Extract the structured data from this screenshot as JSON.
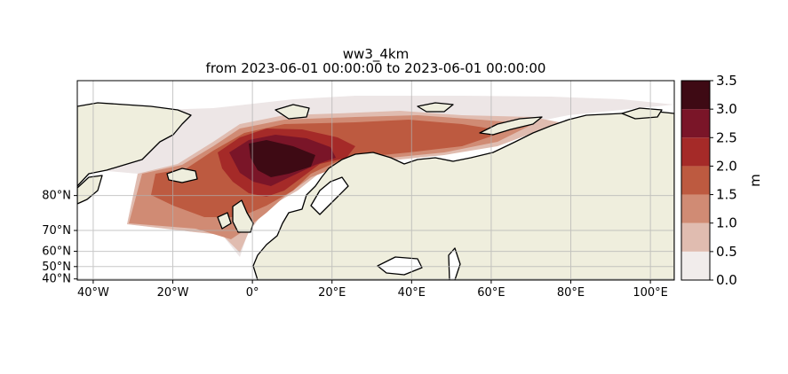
{
  "title": "ww3_4km",
  "subtitle": "from 2023-06-01 00:00:00 to 2023-06-01 00:00:00",
  "map": {
    "lon_range": [
      -44,
      106
    ],
    "lat_range": [
      39,
      89
    ],
    "lon_ticks": [
      "40°W",
      "20°W",
      "0°",
      "20°E",
      "40°E",
      "60°E",
      "80°E",
      "100°E"
    ],
    "lon_tick_values": [
      -40,
      -20,
      0,
      20,
      40,
      60,
      80,
      100
    ],
    "lat_ticks": [
      "80°N",
      "70°N",
      "60°N",
      "50°N",
      "40°N"
    ],
    "lat_tick_values": [
      80,
      70,
      60,
      50,
      40
    ],
    "land_color": "#efeedd",
    "ocean_color": "#ffffff",
    "grid": true
  },
  "colorbar": {
    "unit": "m",
    "ticks": [
      "0.0",
      "0.5",
      "1.0",
      "1.5",
      "2.0",
      "2.5",
      "3.0",
      "3.5"
    ],
    "levels": [
      0.0,
      0.5,
      1.0,
      1.5,
      2.0,
      2.5,
      3.0,
      3.5
    ],
    "colors": [
      "#f1eceb",
      "#e0bcb0",
      "#d08b74",
      "#bd5a40",
      "#a52a28",
      "#7a1528",
      "#3e0a14"
    ]
  }
}
